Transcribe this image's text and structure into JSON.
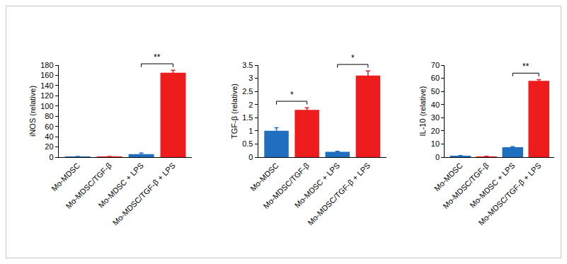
{
  "chart_data": [
    {
      "type": "bar",
      "y_label": "iNOS (relative)",
      "categories": [
        "Mo-MDSC",
        "Mo-MDSC/TGF-β",
        "Mo-MDSC + LPS",
        "Mo-MDSC/TGF-β + LPS"
      ],
      "values": [
        1,
        1,
        6,
        165
      ],
      "errors": [
        0.3,
        0.3,
        2,
        5
      ],
      "colors": [
        "#1f6ebf",
        "#ee1c1c",
        "#1f6ebf",
        "#ee1c1c"
      ],
      "ylim": [
        0,
        180
      ],
      "yticks": [
        0,
        20,
        40,
        60,
        80,
        100,
        120,
        140,
        160,
        180
      ],
      "annotations": [
        {
          "text": "**",
          "between": [
            "Mo-MDSC + LPS",
            "Mo-MDSC/TGF-β + LPS"
          ]
        }
      ]
    },
    {
      "type": "bar",
      "y_label": "TGF-β (relative)",
      "categories": [
        "Mo-MDSC",
        "Mo-MDSC/TGF-β",
        "Mo-MDSC + LPS",
        "Mo-MDSC/TGF-β + LPS"
      ],
      "values": [
        1,
        1.8,
        0.2,
        3.1
      ],
      "errors": [
        0.12,
        0.08,
        0.02,
        0.18
      ],
      "colors": [
        "#1f6ebf",
        "#ee1c1c",
        "#1f6ebf",
        "#ee1c1c"
      ],
      "ylim": [
        0,
        3.5
      ],
      "yticks": [
        0,
        0.5,
        1,
        1.5,
        2,
        2.5,
        3,
        3.5
      ],
      "annotations": [
        {
          "text": "*",
          "between": [
            "Mo-MDSC",
            "Mo-MDSC/TGF-β"
          ]
        },
        {
          "text": "*",
          "between": [
            "Mo-MDSC + LPS",
            "Mo-MDSC/TGF-β + LPS"
          ]
        }
      ]
    },
    {
      "type": "bar",
      "y_label": "IL-10 (relative)",
      "categories": [
        "Mo-MDSC",
        "Mo-MDSC/TGF-β",
        "Mo-MDSC + LPS",
        "Mo-MDSC/TGF-β + LPS"
      ],
      "values": [
        1,
        0.5,
        7.5,
        58
      ],
      "errors": [
        0.2,
        0.2,
        0.5,
        1
      ],
      "colors": [
        "#1f6ebf",
        "#ee1c1c",
        "#1f6ebf",
        "#ee1c1c"
      ],
      "ylim": [
        0,
        70
      ],
      "yticks": [
        0,
        10,
        20,
        30,
        40,
        50,
        60,
        70
      ],
      "annotations": [
        {
          "text": "**",
          "between": [
            "Mo-MDSC + LPS",
            "Mo-MDSC/TGF-β + LPS"
          ]
        }
      ]
    }
  ]
}
